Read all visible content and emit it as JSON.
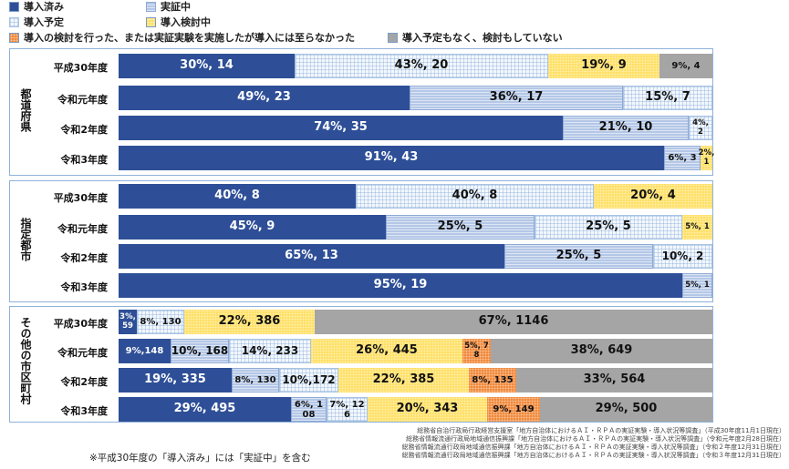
{
  "categories": [
    {
      "name": "導入済み",
      "color": "#2e4f97",
      "pattern": "solid",
      "dark": true
    },
    {
      "name": "実証中",
      "color": "#b4c7e7",
      "pattern": "hstripe",
      "dark": false
    },
    {
      "name": "導入予定",
      "color": "#f2f7fd",
      "pattern": "grid",
      "dark": false
    },
    {
      "name": "導入検討中",
      "color": "#ffe066",
      "pattern": "dots",
      "dark": false
    },
    {
      "name": "導入の検討を行った、または実証実験を実施したが導入には至らなかった",
      "color": "#f08a3c",
      "pattern": "dots",
      "dark": false
    },
    {
      "name": "導入予定もなく、検討もしていない",
      "color": "#a5a5a5",
      "pattern": "solid",
      "dark": false
    }
  ],
  "chart_data": {
    "type": "bar",
    "orientation": "horizontal",
    "stacked": true,
    "xlim": [
      0,
      100
    ],
    "unit": "%",
    "groups": [
      {
        "name": "都道府県",
        "rows": [
          {
            "year": "平成30年度",
            "segments": [
              {
                "category": 0,
                "percent": 30,
                "count": 14,
                "label": "30%, 14"
              },
              {
                "category": 2,
                "percent": 43,
                "count": 20,
                "label": "43%, 20"
              },
              {
                "category": 3,
                "percent": 19,
                "count": 9,
                "label": "19%, 9"
              },
              {
                "category": 5,
                "percent": 9,
                "count": 4,
                "label": "9%, 4"
              }
            ]
          },
          {
            "year": "令和元年度",
            "segments": [
              {
                "category": 0,
                "percent": 49,
                "count": 23,
                "label": "49%, 23"
              },
              {
                "category": 1,
                "percent": 36,
                "count": 17,
                "label": "36%, 17"
              },
              {
                "category": 2,
                "percent": 15,
                "count": 7,
                "label": "15%, 7"
              }
            ]
          },
          {
            "year": "令和2年度",
            "segments": [
              {
                "category": 0,
                "percent": 74,
                "count": 35,
                "label": "74%, 35"
              },
              {
                "category": 1,
                "percent": 21,
                "count": 10,
                "label": "21%, 10"
              },
              {
                "category": 2,
                "percent": 4,
                "count": 2,
                "label": "4%, 2"
              }
            ]
          },
          {
            "year": "令和3年度",
            "segments": [
              {
                "category": 0,
                "percent": 91,
                "count": 43,
                "label": "91%, 43"
              },
              {
                "category": 1,
                "percent": 6,
                "count": 3,
                "label": "6%, 3"
              },
              {
                "category": 3,
                "percent": 2,
                "count": 1,
                "label": "2%, 1"
              }
            ]
          }
        ]
      },
      {
        "name": "指定都市",
        "rows": [
          {
            "year": "平成30年度",
            "segments": [
              {
                "category": 0,
                "percent": 40,
                "count": 8,
                "label": "40%, 8"
              },
              {
                "category": 2,
                "percent": 40,
                "count": 8,
                "label": "40%, 8"
              },
              {
                "category": 3,
                "percent": 20,
                "count": 4,
                "label": "20%, 4"
              }
            ]
          },
          {
            "year": "令和元年度",
            "segments": [
              {
                "category": 0,
                "percent": 45,
                "count": 9,
                "label": "45%, 9"
              },
              {
                "category": 1,
                "percent": 25,
                "count": 5,
                "label": "25%, 5"
              },
              {
                "category": 2,
                "percent": 25,
                "count": 5,
                "label": "25%, 5"
              },
              {
                "category": 3,
                "percent": 5,
                "count": 1,
                "label": "5%, 1"
              }
            ]
          },
          {
            "year": "令和2年度",
            "segments": [
              {
                "category": 0,
                "percent": 65,
                "count": 13,
                "label": "65%, 13"
              },
              {
                "category": 1,
                "percent": 25,
                "count": 5,
                "label": "25%, 5"
              },
              {
                "category": 2,
                "percent": 10,
                "count": 2,
                "label": "10%, 2"
              }
            ]
          },
          {
            "year": "令和3年度",
            "segments": [
              {
                "category": 0,
                "percent": 95,
                "count": 19,
                "label": "95%, 19"
              },
              {
                "category": 1,
                "percent": 5,
                "count": 1,
                "label": "5%, 1"
              }
            ]
          }
        ]
      },
      {
        "name": "その他の市区町村",
        "rows": [
          {
            "year": "平成30年度",
            "segments": [
              {
                "category": 0,
                "percent": 3,
                "count": 59,
                "label": "3%, 59"
              },
              {
                "category": 2,
                "percent": 8,
                "count": 130,
                "label": "8%, 130"
              },
              {
                "category": 3,
                "percent": 22,
                "count": 386,
                "label": "22%, 386"
              },
              {
                "category": 5,
                "percent": 67,
                "count": 1146,
                "label": "67%, 1146"
              }
            ]
          },
          {
            "year": "令和元年度",
            "segments": [
              {
                "category": 0,
                "percent": 9,
                "count": 148,
                "label": "9%,148"
              },
              {
                "category": 1,
                "percent": 10,
                "count": 168,
                "label": "10%, 168"
              },
              {
                "category": 2,
                "percent": 14,
                "count": 233,
                "label": "14%, 233"
              },
              {
                "category": 3,
                "percent": 26,
                "count": 445,
                "label": "26%, 445"
              },
              {
                "category": 4,
                "percent": 5,
                "count": 78,
                "label": "5%, 78"
              },
              {
                "category": 5,
                "percent": 38,
                "count": 649,
                "label": "38%, 649"
              }
            ]
          },
          {
            "year": "令和2年度",
            "segments": [
              {
                "category": 0,
                "percent": 19,
                "count": 335,
                "label": "19%, 335"
              },
              {
                "category": 1,
                "percent": 8,
                "count": 130,
                "label": "8%, 130"
              },
              {
                "category": 2,
                "percent": 10,
                "count": 172,
                "label": "10%,172"
              },
              {
                "category": 3,
                "percent": 22,
                "count": 385,
                "label": "22%, 385"
              },
              {
                "category": 4,
                "percent": 8,
                "count": 135,
                "label": "8%, 135"
              },
              {
                "category": 5,
                "percent": 33,
                "count": 564,
                "label": "33%, 564"
              }
            ]
          },
          {
            "year": "令和3年度",
            "segments": [
              {
                "category": 0,
                "percent": 29,
                "count": 495,
                "label": "29%, 495"
              },
              {
                "category": 1,
                "percent": 6,
                "count": 108,
                "label": "6%, 108"
              },
              {
                "category": 2,
                "percent": 7,
                "count": 126,
                "label": "7%, 126"
              },
              {
                "category": 3,
                "percent": 20,
                "count": 343,
                "label": "20%, 343"
              },
              {
                "category": 4,
                "percent": 9,
                "count": 149,
                "label": "9%, 149"
              },
              {
                "category": 5,
                "percent": 29,
                "count": 500,
                "label": "29%, 500"
              }
            ]
          }
        ]
      }
    ]
  },
  "footnote": "※平成30年度の「導入済み」には「実証中」を含む",
  "sources": [
    "総務省自治行政局行政経営支援室「地方自治体におけるＡＩ・ＲＰＡの実証実験・導入状況等調査」（平成30年度11月1日現在）",
    "総務省情報流通行政局地域通信振興課「地方自治体におけるＡＩ・ＲＰＡの実証実験・導入状況等調査」（令和元年度2月28日現在）",
    "総務省情報流通行政局地域通信振興課「地方自治体におけるＡＩ・ＲＰＡの実証実験・導入状況等調査」（令和２年度12月31日現在）",
    "総務省情報流通行政局地域通信振興課「地方自治体におけるＡＩ・ＲＰＡの実証実験・導入状況等調査」（令和３年度12月31日現在）"
  ]
}
